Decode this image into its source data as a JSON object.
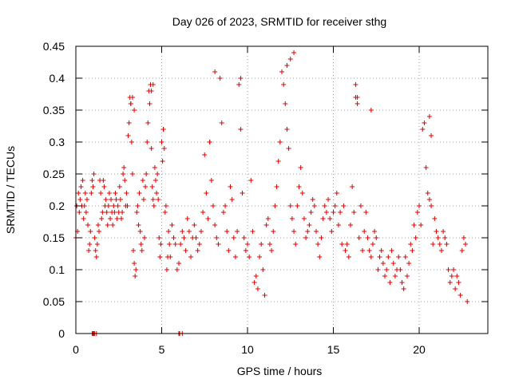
{
  "chart_data": {
    "type": "scatter",
    "title": "Day 026 of 2023, SRMTID for receiver sthg",
    "xlabel": "GPS time / hours",
    "ylabel": "SRMTID / TECUs",
    "xlim": [
      0,
      24
    ],
    "ylim": [
      0,
      0.45
    ],
    "xticks": [
      0,
      5,
      10,
      15,
      20
    ],
    "xtick_labels": [
      "0",
      "5",
      "10",
      "15",
      "20"
    ],
    "yticks": [
      0,
      0.05,
      0.1,
      0.15,
      0.2,
      0.25,
      0.3,
      0.35,
      0.4,
      0.45
    ],
    "ytick_labels": [
      "0",
      "0.05",
      "0.1",
      "0.15",
      "0.2",
      "0.25",
      "0.3",
      "0.35",
      "0.4",
      "0.45"
    ],
    "grid": true,
    "marker": "+",
    "color": "#e00000",
    "series": [
      {
        "name": "SRMTID",
        "x": [
          0.0,
          0.05,
          0.1,
          0.15,
          0.2,
          0.25,
          0.3,
          0.35,
          0.4,
          0.45,
          0.5,
          0.55,
          0.6,
          0.65,
          0.7,
          0.75,
          0.8,
          0.85,
          0.9,
          0.95,
          1.0,
          1.05,
          1.1,
          1.15,
          1.2,
          1.25,
          1.3,
          1.35,
          1.4,
          1.45,
          1.5,
          1.55,
          1.6,
          1.65,
          1.7,
          1.75,
          1.8,
          1.85,
          1.9,
          1.95,
          2.0,
          2.05,
          2.1,
          2.15,
          2.2,
          2.25,
          2.3,
          2.35,
          2.4,
          2.45,
          2.5,
          2.55,
          2.6,
          2.65,
          2.7,
          2.75,
          2.8,
          2.85,
          2.9,
          2.95,
          3.0,
          3.05,
          3.1,
          3.15,
          3.2,
          3.25,
          3.3,
          3.35,
          3.4,
          3.45,
          3.5,
          3.55,
          3.6,
          3.65,
          3.7,
          3.75,
          3.8,
          3.85,
          3.9,
          3.95,
          4.0,
          4.05,
          4.1,
          4.15,
          4.2,
          4.25,
          4.3,
          4.35,
          4.4,
          4.45,
          4.5,
          4.55,
          4.6,
          4.65,
          4.7,
          4.75,
          4.8,
          4.85,
          4.9,
          4.95,
          5.0,
          5.05,
          5.1,
          5.15,
          5.2,
          5.25,
          5.3,
          5.35,
          5.4,
          5.45,
          5.5,
          5.6,
          5.7,
          5.8,
          5.9,
          6.0,
          6.1,
          6.2,
          6.3,
          6.4,
          6.5,
          6.6,
          6.7,
          6.8,
          6.9,
          7.0,
          7.1,
          7.2,
          7.3,
          7.4,
          7.5,
          7.6,
          7.7,
          7.8,
          7.9,
          8.0,
          8.1,
          8.2,
          8.3,
          8.4,
          8.5,
          8.6,
          8.7,
          8.8,
          8.9,
          9.0,
          9.1,
          9.2,
          9.3,
          9.4,
          9.5,
          9.6,
          9.7,
          9.8,
          9.9,
          10.0,
          10.1,
          10.2,
          10.3,
          10.4,
          10.5,
          10.6,
          10.7,
          10.8,
          10.9,
          11.0,
          11.1,
          11.2,
          11.3,
          11.4,
          11.5,
          11.6,
          11.7,
          11.8,
          11.9,
          12.0,
          12.1,
          12.2,
          12.3,
          12.4,
          12.5,
          12.6,
          12.7,
          12.8,
          12.9,
          13.0,
          13.1,
          13.2,
          13.3,
          13.4,
          13.5,
          13.6,
          13.7,
          13.8,
          13.9,
          14.0,
          14.1,
          14.2,
          14.3,
          14.4,
          14.5,
          14.6,
          14.7,
          14.8,
          14.9,
          15.0,
          15.1,
          15.2,
          15.3,
          15.4,
          15.5,
          15.6,
          15.7,
          15.8,
          15.9,
          16.0,
          16.1,
          16.2,
          16.3,
          16.4,
          16.5,
          16.6,
          16.7,
          16.8,
          16.9,
          17.0,
          17.1,
          17.2,
          17.3,
          17.4,
          17.5,
          17.6,
          17.7,
          17.8,
          17.9,
          18.0,
          18.1,
          18.2,
          18.3,
          18.4,
          18.5,
          18.6,
          18.7,
          18.8,
          18.9,
          19.0,
          19.1,
          19.2,
          19.3,
          19.4,
          19.5,
          19.6,
          19.7,
          19.8,
          19.9,
          20.0,
          20.1,
          20.2,
          20.3,
          20.4,
          20.5,
          20.6,
          20.7,
          20.8,
          20.9,
          21.0,
          21.1,
          21.2,
          21.3,
          21.4,
          21.5,
          21.6,
          21.7,
          21.8,
          21.9,
          22.0,
          22.1,
          22.2,
          22.3,
          22.4,
          22.5,
          22.6,
          22.7,
          22.8,
          3.2,
          3.3,
          3.4,
          4.4,
          4.5,
          5.1,
          7.8,
          8.1,
          9.6,
          12.3,
          12.5,
          12.7,
          16.3,
          16.4,
          17.2,
          20.6,
          20.7,
          0.95,
          1.0,
          1.05,
          1.1,
          1.2,
          6.0,
          6.05,
          6.2
        ],
        "y": [
          0.15,
          0.2,
          0.16,
          0.22,
          0.19,
          0.21,
          0.23,
          0.2,
          0.24,
          0.18,
          0.2,
          0.22,
          0.19,
          0.21,
          0.17,
          0.13,
          0.14,
          0.16,
          0.22,
          0.24,
          0.23,
          0.25,
          0.15,
          0.13,
          0.12,
          0.14,
          0.17,
          0.16,
          0.24,
          0.22,
          0.18,
          0.19,
          0.24,
          0.23,
          0.2,
          0.21,
          0.19,
          0.17,
          0.2,
          0.22,
          0.18,
          0.21,
          0.19,
          0.17,
          0.2,
          0.19,
          0.22,
          0.21,
          0.18,
          0.2,
          0.19,
          0.23,
          0.21,
          0.18,
          0.19,
          0.25,
          0.26,
          0.24,
          0.2,
          0.22,
          0.2,
          0.31,
          0.33,
          0.37,
          0.36,
          0.3,
          0.25,
          0.13,
          0.11,
          0.09,
          0.1,
          0.19,
          0.2,
          0.17,
          0.22,
          0.16,
          0.14,
          0.13,
          0.24,
          0.21,
          0.15,
          0.23,
          0.25,
          0.3,
          0.33,
          0.38,
          0.36,
          0.39,
          0.29,
          0.23,
          0.21,
          0.2,
          0.26,
          0.24,
          0.22,
          0.25,
          0.21,
          0.15,
          0.12,
          0.14,
          0.3,
          0.27,
          0.32,
          0.29,
          0.19,
          0.2,
          0.1,
          0.12,
          0.16,
          0.14,
          0.12,
          0.17,
          0.15,
          0.14,
          0.1,
          0.11,
          0.14,
          0.16,
          0.15,
          0.13,
          0.18,
          0.16,
          0.12,
          0.15,
          0.17,
          0.15,
          0.13,
          0.14,
          0.16,
          0.19,
          0.28,
          0.22,
          0.18,
          0.3,
          0.24,
          0.2,
          0.17,
          0.15,
          0.14,
          0.4,
          0.33,
          0.19,
          0.2,
          0.16,
          0.13,
          0.23,
          0.21,
          0.15,
          0.12,
          0.16,
          0.39,
          0.32,
          0.22,
          0.15,
          0.13,
          0.14,
          0.12,
          0.24,
          0.16,
          0.08,
          0.09,
          0.07,
          0.12,
          0.14,
          0.1,
          0.06,
          0.17,
          0.18,
          0.14,
          0.13,
          0.16,
          0.2,
          0.23,
          0.27,
          0.3,
          0.41,
          0.39,
          0.36,
          0.32,
          0.29,
          0.2,
          0.18,
          0.16,
          0.14,
          0.2,
          0.23,
          0.26,
          0.22,
          0.18,
          0.15,
          0.16,
          0.17,
          0.19,
          0.21,
          0.2,
          0.16,
          0.14,
          0.12,
          0.15,
          0.18,
          0.2,
          0.19,
          0.21,
          0.18,
          0.16,
          0.19,
          0.2,
          0.22,
          0.17,
          0.19,
          0.14,
          0.2,
          0.13,
          0.14,
          0.12,
          0.17,
          0.23,
          0.19,
          0.37,
          0.36,
          0.15,
          0.2,
          0.13,
          0.16,
          0.19,
          0.15,
          0.13,
          0.12,
          0.14,
          0.16,
          0.15,
          0.1,
          0.12,
          0.13,
          0.11,
          0.09,
          0.1,
          0.12,
          0.08,
          0.13,
          0.11,
          0.09,
          0.1,
          0.12,
          0.1,
          0.08,
          0.07,
          0.12,
          0.09,
          0.11,
          0.14,
          0.13,
          0.17,
          0.15,
          0.19,
          0.2,
          0.17,
          0.32,
          0.33,
          0.26,
          0.22,
          0.21,
          0.2,
          0.14,
          0.18,
          0.16,
          0.15,
          0.14,
          0.13,
          0.16,
          0.15,
          0.14,
          0.1,
          0.08,
          0.09,
          0.1,
          0.07,
          0.09,
          0.08,
          0.06,
          0.13,
          0.15,
          0.14,
          0.05,
          0.36,
          0.37,
          0.35,
          0.38,
          0.39,
          0.32,
          0.3,
          0.41,
          0.4,
          0.42,
          0.43,
          0.44,
          0.39,
          0.37,
          0.35,
          0.34,
          0.31,
          0.0,
          0.0,
          0.0,
          0.0,
          0.0,
          0.0,
          0.0,
          0.0
        ]
      }
    ]
  }
}
